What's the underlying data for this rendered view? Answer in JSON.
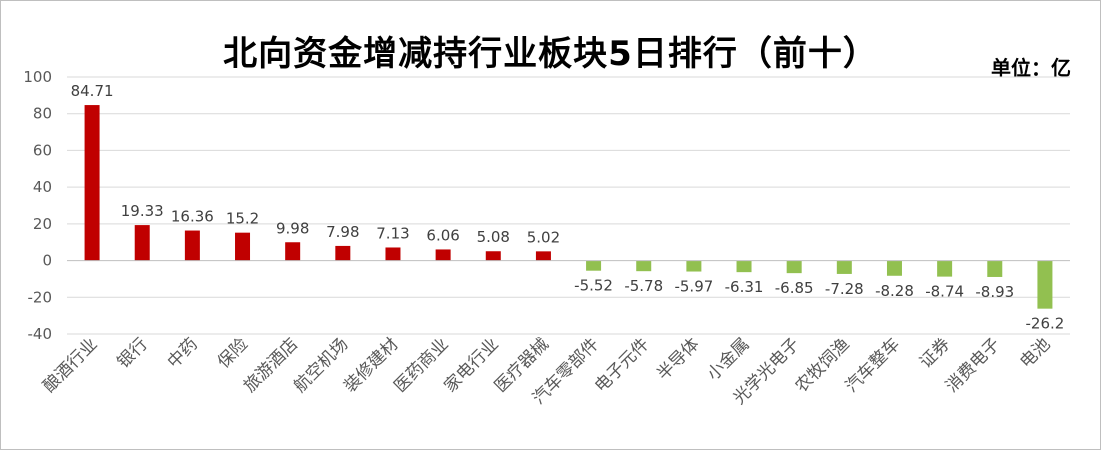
{
  "chart_data": {
    "type": "bar",
    "title": "北向资金增减持行业板块5日排行（前十）",
    "unit_label": "单位：亿",
    "categories": [
      "酿酒行业",
      "银行",
      "中药",
      "保险",
      "旅游酒店",
      "航空机场",
      "装修建材",
      "医药商业",
      "家电行业",
      "医疗器械",
      "汽车零部件",
      "电子元件",
      "半导体",
      "小金属",
      "光学光电子",
      "农牧饲渔",
      "汽车整车",
      "证券",
      "消费电子",
      "电池"
    ],
    "values": [
      84.71,
      19.33,
      16.36,
      15.2,
      9.98,
      7.98,
      7.13,
      6.06,
      5.08,
      5.02,
      -5.52,
      -5.78,
      -5.97,
      -6.31,
      -6.85,
      -7.28,
      -8.28,
      -8.74,
      -8.93,
      -26.2
    ],
    "value_labels": [
      "84.71",
      "19.33",
      "16.36",
      "15.2",
      "9.98",
      "7.98",
      "7.13",
      "6.06",
      "5.08",
      "5.02",
      "-5.52",
      "-5.78",
      "-5.97",
      "-6.31",
      "-6.85",
      "-7.28",
      "-8.28",
      "-8.74",
      "-8.93",
      "-26.2"
    ],
    "ylim": [
      -40,
      100
    ],
    "yticks": [
      "-40",
      "-20",
      "0",
      "20",
      "40",
      "60",
      "80",
      "100"
    ],
    "grid": true,
    "colors": {
      "positive": "#c00000",
      "negative": "#92c050",
      "grid": "#d9d9d9"
    }
  }
}
